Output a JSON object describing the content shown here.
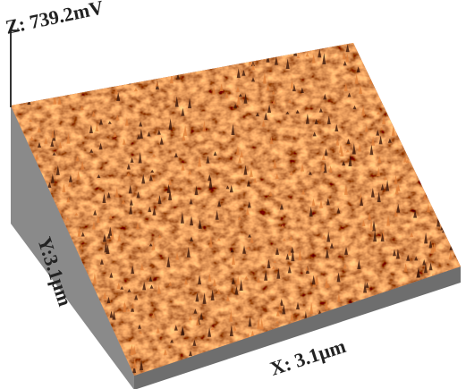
{
  "labels": {
    "z": "Z: 739.2mV",
    "y": "Y:3.1µm",
    "x": "X: 3.1µm"
  }
}
